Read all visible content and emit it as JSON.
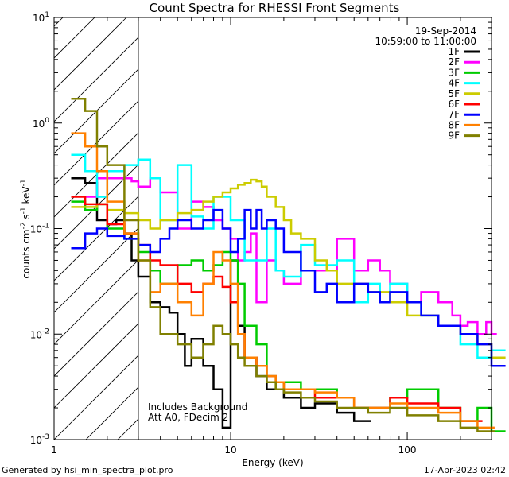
{
  "chart_data": {
    "type": "line",
    "title": "Count Spectra for RHESSI Front Segments",
    "xlabel": "Energy (keV)",
    "ylabel_parts": [
      "counts cm",
      "-2",
      " s",
      "-1",
      " keV",
      "-1"
    ],
    "x_scale": "log",
    "y_scale": "log",
    "xlim": [
      1,
      300
    ],
    "ylim": [
      0.001,
      10
    ],
    "x_ticks": [
      {
        "v": 1,
        "label": "1"
      },
      {
        "v": 10,
        "label": "10"
      },
      {
        "v": 100,
        "label": "100"
      }
    ],
    "y_ticks": [
      {
        "v": 0.001,
        "base": "10",
        "exp": "-3"
      },
      {
        "v": 0.01,
        "base": "10",
        "exp": "-2"
      },
      {
        "v": 0.1,
        "base": "10",
        "exp": "-1"
      },
      {
        "v": 1,
        "base": "10",
        "exp": "0"
      },
      {
        "v": 10,
        "base": "10",
        "exp": "1"
      }
    ],
    "hatched_region": [
      1,
      3
    ],
    "date": "19-Sep-2014",
    "time_range": "10:59:00 to 11:00:00",
    "annotation_lines": [
      "Includes Background",
      "Att A0, FDecim 2"
    ],
    "series": [
      {
        "name": "1F",
        "color": "#000000",
        "x": [
          1.25,
          1.5,
          1.75,
          2,
          2.25,
          2.5,
          2.75,
          3,
          3.5,
          4,
          4.5,
          5,
          5.5,
          6,
          7,
          8,
          9,
          10,
          11,
          12,
          14,
          16,
          18,
          20,
          25,
          30,
          40,
          50
        ],
        "y": [
          0.3,
          0.27,
          0.12,
          0.11,
          0.12,
          0.09,
          0.05,
          0.035,
          0.02,
          0.018,
          0.016,
          0.01,
          0.005,
          0.009,
          0.005,
          0.003,
          0.0013,
          0.05,
          0.012,
          0.006,
          0.004,
          0.003,
          0.003,
          0.0025,
          0.002,
          0.0022,
          0.0018,
          0.0015
        ]
      },
      {
        "name": "2F",
        "color": "#ff00ff",
        "x": [
          1.5,
          1.75,
          2,
          2.25,
          2.5,
          2.75,
          3,
          3.5,
          4,
          5,
          6,
          7,
          8,
          9,
          10,
          11,
          12,
          13,
          14,
          16,
          18,
          20,
          25,
          30,
          40,
          50,
          60,
          70,
          80,
          100,
          120,
          150,
          180,
          200,
          220,
          250,
          280,
          300
        ],
        "y": [
          0.2,
          0.3,
          0.3,
          0.3,
          0.3,
          0.28,
          0.25,
          0.3,
          0.22,
          0.1,
          0.18,
          0.16,
          0.12,
          0.1,
          0.08,
          0.05,
          0.06,
          0.09,
          0.02,
          0.05,
          0.04,
          0.03,
          0.04,
          0.04,
          0.08,
          0.04,
          0.05,
          0.04,
          0.03,
          0.02,
          0.025,
          0.02,
          0.015,
          0.012,
          0.013,
          0.01,
          0.013,
          0.01
        ]
      },
      {
        "name": "3F",
        "color": "#00cc00",
        "x": [
          1.25,
          1.5,
          1.75,
          2,
          2.5,
          3,
          3.5,
          4,
          5,
          6,
          7,
          8,
          9,
          10,
          11,
          12,
          14,
          16,
          18,
          20,
          25,
          30,
          40,
          50,
          60,
          80,
          100,
          150,
          200,
          250,
          300
        ],
        "y": [
          0.18,
          0.15,
          0.17,
          0.1,
          0.08,
          0.06,
          0.04,
          0.03,
          0.045,
          0.05,
          0.04,
          0.045,
          0.06,
          0.05,
          0.03,
          0.012,
          0.008,
          0.004,
          0.003,
          0.0035,
          0.003,
          0.003,
          0.0025,
          0.002,
          0.002,
          0.0025,
          0.003,
          0.002,
          0.0015,
          0.002,
          0.0012
        ]
      },
      {
        "name": "4F",
        "color": "#00ffff",
        "x": [
          1.25,
          1.5,
          1.75,
          2,
          2.5,
          3,
          3.5,
          4,
          5,
          6,
          7,
          8,
          10,
          12,
          14,
          16,
          18,
          20,
          25,
          30,
          40,
          50,
          60,
          70,
          80,
          100,
          120,
          150,
          200,
          250,
          300
        ],
        "y": [
          0.5,
          0.35,
          0.2,
          0.35,
          0.4,
          0.45,
          0.3,
          0.12,
          0.4,
          0.13,
          0.1,
          0.2,
          0.12,
          0.05,
          0.05,
          0.1,
          0.04,
          0.035,
          0.07,
          0.045,
          0.05,
          0.02,
          0.03,
          0.02,
          0.03,
          0.02,
          0.015,
          0.012,
          0.008,
          0.006,
          0.007
        ]
      },
      {
        "name": "5F",
        "color": "#cccc00",
        "x": [
          1.25,
          1.5,
          1.75,
          2,
          2.5,
          3,
          3.5,
          4,
          5,
          6,
          7,
          8,
          9,
          10,
          11,
          12,
          13,
          14,
          15,
          16,
          18,
          20,
          22,
          25,
          30,
          35,
          40,
          50,
          60,
          70,
          80,
          100,
          120,
          150,
          200,
          250,
          300
        ],
        "y": [
          0.16,
          0.16,
          0.17,
          0.15,
          0.14,
          0.12,
          0.1,
          0.12,
          0.14,
          0.15,
          0.18,
          0.2,
          0.22,
          0.24,
          0.26,
          0.27,
          0.29,
          0.28,
          0.25,
          0.2,
          0.16,
          0.12,
          0.09,
          0.08,
          0.05,
          0.04,
          0.03,
          0.03,
          0.025,
          0.025,
          0.02,
          0.015,
          0.015,
          0.012,
          0.01,
          0.008,
          0.006
        ]
      },
      {
        "name": "6F",
        "color": "#ff0000",
        "x": [
          1.25,
          1.5,
          1.75,
          2,
          2.5,
          3,
          3.5,
          4,
          5,
          6,
          7,
          8,
          9,
          10,
          11,
          12,
          14,
          16,
          18,
          20,
          25,
          30,
          40,
          50,
          60,
          80,
          100,
          150,
          200
        ],
        "y": [
          0.2,
          0.17,
          0.17,
          0.11,
          0.09,
          0.07,
          0.05,
          0.045,
          0.03,
          0.025,
          0.03,
          0.035,
          0.028,
          0.02,
          0.01,
          0.006,
          0.005,
          0.004,
          0.0035,
          0.003,
          0.003,
          0.0025,
          0.0025,
          0.002,
          0.002,
          0.0025,
          0.0022,
          0.002,
          0.0015
        ]
      },
      {
        "name": "7F",
        "color": "#0000ff",
        "x": [
          1.25,
          1.5,
          1.75,
          2,
          2.5,
          3,
          3.5,
          4,
          4.5,
          5,
          6,
          7,
          8,
          9,
          10,
          11,
          12,
          13,
          14,
          15,
          16,
          18,
          20,
          25,
          30,
          35,
          40,
          50,
          60,
          70,
          80,
          100,
          120,
          150,
          200,
          250,
          300
        ],
        "y": [
          0.065,
          0.09,
          0.1,
          0.085,
          0.08,
          0.07,
          0.06,
          0.08,
          0.1,
          0.12,
          0.1,
          0.12,
          0.15,
          0.1,
          0.06,
          0.08,
          0.15,
          0.1,
          0.15,
          0.1,
          0.12,
          0.1,
          0.06,
          0.04,
          0.025,
          0.03,
          0.02,
          0.03,
          0.025,
          0.02,
          0.025,
          0.02,
          0.015,
          0.012,
          0.01,
          0.008,
          0.005
        ]
      },
      {
        "name": "8F",
        "color": "#ff8000",
        "x": [
          1.25,
          1.5,
          1.75,
          2,
          2.5,
          3,
          3.5,
          4,
          5,
          6,
          7,
          8,
          9,
          10,
          11,
          12,
          14,
          16,
          18,
          20,
          25,
          30,
          40,
          50,
          60,
          80,
          100,
          150,
          200,
          250
        ],
        "y": [
          0.8,
          0.6,
          0.35,
          0.18,
          0.09,
          0.05,
          0.025,
          0.03,
          0.02,
          0.015,
          0.03,
          0.06,
          0.05,
          0.03,
          0.01,
          0.006,
          0.005,
          0.004,
          0.0035,
          0.003,
          0.003,
          0.0028,
          0.0025,
          0.002,
          0.002,
          0.0022,
          0.002,
          0.0018,
          0.0015,
          0.0013
        ]
      },
      {
        "name": "9F",
        "color": "#808000",
        "x": [
          1.25,
          1.5,
          1.75,
          2,
          2.5,
          3,
          3.5,
          4,
          5,
          6,
          7,
          8,
          9,
          10,
          11,
          12,
          14,
          16,
          18,
          20,
          25,
          30,
          40,
          50,
          60,
          80,
          100,
          150,
          200,
          250
        ],
        "y": [
          1.7,
          1.3,
          0.6,
          0.4,
          0.12,
          0.05,
          0.018,
          0.01,
          0.008,
          0.006,
          0.008,
          0.012,
          0.01,
          0.008,
          0.006,
          0.005,
          0.004,
          0.0035,
          0.003,
          0.0028,
          0.0025,
          0.0023,
          0.002,
          0.002,
          0.0018,
          0.002,
          0.0017,
          0.0015,
          0.0013,
          0.0012
        ]
      }
    ]
  },
  "footer": {
    "generated_by": "Generated by hsi_min_spectra_plot.pro",
    "timestamp": "17-Apr-2023 02:42"
  }
}
